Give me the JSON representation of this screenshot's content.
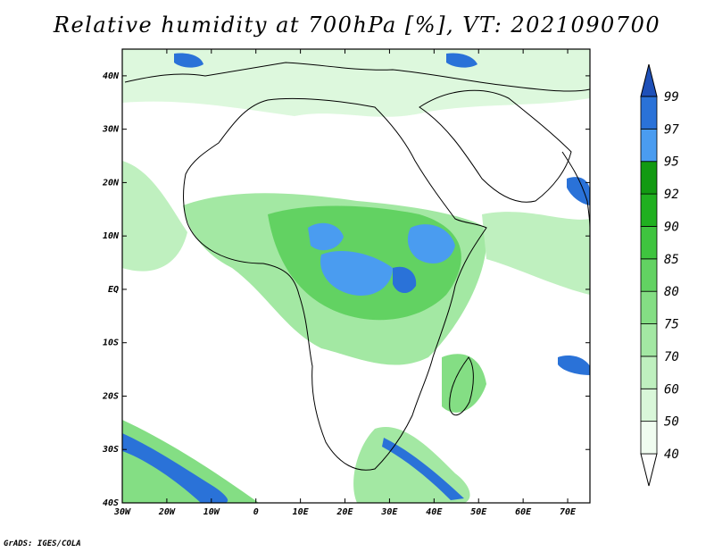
{
  "title": "Relative humidity at 700hPa [%], VT: 2021090700",
  "credit": "GrADS: IGES/COLA",
  "map": {
    "lon_range": [
      -30,
      75
    ],
    "lat_range": [
      -40,
      45
    ],
    "lon_ticks": [
      "30W",
      "20W",
      "10W",
      "0",
      "10E",
      "20E",
      "30E",
      "40E",
      "50E",
      "60E",
      "70E"
    ],
    "lat_ticks": [
      "40S",
      "30S",
      "20S",
      "10S",
      "EQ",
      "10N",
      "20N",
      "30N",
      "40N"
    ]
  },
  "colorbar": {
    "levels": [
      "40",
      "50",
      "60",
      "70",
      "75",
      "80",
      "85",
      "90",
      "92",
      "95",
      "97",
      "99"
    ],
    "colors": [
      "#ffffff",
      "#f0fcf0",
      "#d9f7d9",
      "#bff0bf",
      "#a3e8a3",
      "#84de84",
      "#62d262",
      "#3fc43f",
      "#20b020",
      "#129a12",
      "#4a9cf0",
      "#2a72d8",
      "#1e50b8"
    ]
  },
  "regions": {
    "land": "#ffffff"
  }
}
